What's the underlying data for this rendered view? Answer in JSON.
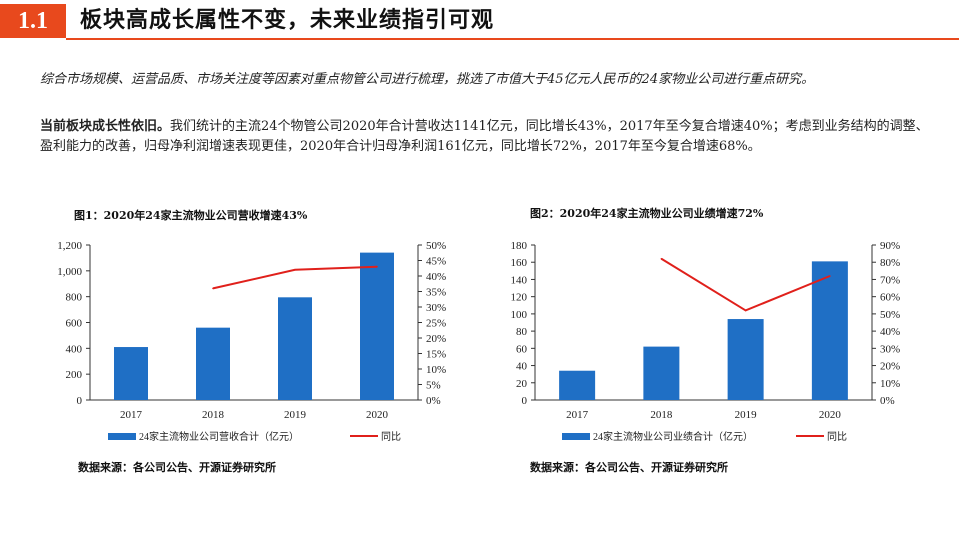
{
  "header": {
    "number": "1.1",
    "title": "板块高成长属性不变，未来业绩指引可观"
  },
  "paragraph1": "综合市场规模、运营品质、市场关注度等因素对重点物管公司进行梳理，挑选了市值大于45亿元人民币的24家物业公司进行重点研究。",
  "paragraph2": {
    "bold": "当前板块成长性依旧。",
    "text": "我们统计的主流24个物管公司2020年合计营收达1141亿元，同比增长43%，2017年至今复合增速40%；考虑到业务结构的调整、盈利能力的改善，归母净利润增速表现更佳，2020年合计归母净利润161亿元，同比增长72%，2017年至今复合增速68%。"
  },
  "colors": {
    "accent": "#e8491d",
    "bar": "#1f6fc5",
    "line": "#e0201b"
  },
  "chart_data": [
    {
      "type": "bar",
      "caption": "图1：2020年24家主流物业公司营收增速43%",
      "categories": [
        "2017",
        "2018",
        "2019",
        "2020"
      ],
      "series": [
        {
          "name": "24家主流物业公司营收合计（亿元）",
          "values": [
            410,
            560,
            795,
            1141
          ],
          "axis": "left"
        },
        {
          "name": "同比",
          "type": "line",
          "values": [
            null,
            36,
            42,
            43
          ],
          "axis": "right"
        }
      ],
      "y_left": {
        "lim": [
          0,
          1200
        ],
        "ticks": [
          "0",
          "200",
          "400",
          "600",
          "800",
          "1,000",
          "1,200"
        ]
      },
      "y_right": {
        "lim": [
          0,
          50
        ],
        "ticks": [
          "0%",
          "5%",
          "10%",
          "15%",
          "20%",
          "25%",
          "30%",
          "35%",
          "40%",
          "45%",
          "50%"
        ]
      },
      "legend_position": "bottom",
      "source": "数据来源：各公司公告、开源证券研究所"
    },
    {
      "type": "bar",
      "caption": "图2：2020年24家主流物业公司业绩增速72%",
      "categories": [
        "2017",
        "2018",
        "2019",
        "2020"
      ],
      "series": [
        {
          "name": "24家主流物业公司业绩合计（亿元）",
          "values": [
            34,
            62,
            94,
            161
          ],
          "axis": "left"
        },
        {
          "name": "同比",
          "type": "line",
          "values": [
            null,
            82,
            52,
            72
          ],
          "axis": "right"
        }
      ],
      "y_left": {
        "lim": [
          0,
          180
        ],
        "ticks": [
          "0",
          "20",
          "40",
          "60",
          "80",
          "100",
          "120",
          "140",
          "160",
          "180"
        ]
      },
      "y_right": {
        "lim": [
          0,
          90
        ],
        "ticks": [
          "0%",
          "10%",
          "20%",
          "30%",
          "40%",
          "50%",
          "60%",
          "70%",
          "80%",
          "90%"
        ]
      },
      "legend_position": "bottom",
      "source": "数据来源：各公司公告、开源证券研究所"
    }
  ]
}
